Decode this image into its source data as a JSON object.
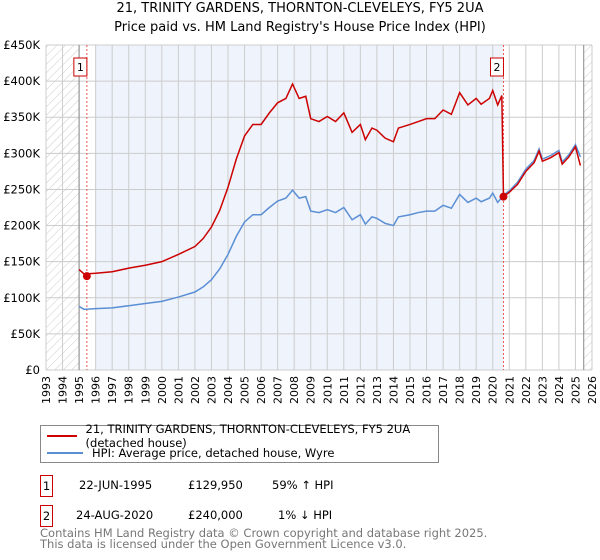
{
  "title": "21, TRINITY GARDENS, THORNTON-CLEVELEYS, FY5 2UA",
  "subtitle": "Price paid vs. HM Land Registry's House Price Index (HPI)",
  "chart_data": {
    "type": "line",
    "title": "21, TRINITY GARDENS, THORNTON-CLEVELEYS, FY5 2UA",
    "subtitle": "Price paid vs. HM Land Registry's House Price Index (HPI)",
    "xlim": [
      1993,
      2026
    ],
    "ylim": [
      0,
      450000
    ],
    "x_ticks": [
      "1993",
      "1994",
      "1995",
      "1996",
      "1997",
      "1998",
      "1999",
      "2000",
      "2001",
      "2002",
      "2003",
      "2004",
      "2005",
      "2006",
      "2007",
      "2008",
      "2009",
      "2010",
      "2011",
      "2012",
      "2013",
      "2014",
      "2015",
      "2016",
      "2017",
      "2018",
      "2019",
      "2020",
      "2021",
      "2022",
      "2023",
      "2024",
      "2025",
      "2026"
    ],
    "y_ticks": [
      {
        "v": 0,
        "label": "£0"
      },
      {
        "v": 50000,
        "label": "£50K"
      },
      {
        "v": 100000,
        "label": "£100K"
      },
      {
        "v": 150000,
        "label": "£150K"
      },
      {
        "v": 200000,
        "label": "£200K"
      },
      {
        "v": 250000,
        "label": "£250K"
      },
      {
        "v": 300000,
        "label": "£300K"
      },
      {
        "v": 350000,
        "label": "£350K"
      },
      {
        "v": 400000,
        "label": "£400K"
      },
      {
        "v": 450000,
        "label": "£450K"
      }
    ],
    "grid": true,
    "colors": {
      "property": "#cc0000",
      "hpi": "#5b8fd4",
      "band": "#eef3fc"
    },
    "series": [
      {
        "name": "21, TRINITY GARDENS, THORNTON-CLEVELEYS, FY5 2UA (detached house)",
        "x": [
          1995,
          1995.3,
          1996,
          1997,
          1998,
          1999,
          2000,
          2001,
          2002,
          2002.5,
          2003,
          2003.5,
          2004,
          2004.5,
          2005,
          2005.5,
          2006,
          2006.5,
          2007,
          2007.5,
          2007.9,
          2008.3,
          2008.7,
          2009,
          2009.5,
          2010,
          2010.5,
          2011,
          2011.5,
          2012,
          2012.3,
          2012.7,
          2013,
          2013.5,
          2014,
          2014.3,
          2015,
          2015.5,
          2016,
          2016.5,
          2017,
          2017.5,
          2018,
          2018.5,
          2019,
          2019.3,
          2019.8,
          2020,
          2020.3,
          2020.55,
          2020.65,
          2021,
          2021.5,
          2022,
          2022.5,
          2022.8,
          2023,
          2023.5,
          2024,
          2024.2,
          2024.6,
          2025,
          2025.3
        ],
        "y": [
          139000,
          133000,
          134000,
          136000,
          141000,
          145000,
          150000,
          160000,
          171000,
          182000,
          198000,
          221000,
          253000,
          292000,
          324000,
          340000,
          340000,
          356000,
          370000,
          376000,
          396000,
          376000,
          379000,
          348000,
          344000,
          351000,
          344000,
          356000,
          329000,
          340000,
          319000,
          335000,
          332000,
          321000,
          316000,
          335000,
          340000,
          344000,
          348000,
          348000,
          360000,
          354000,
          384000,
          367000,
          376000,
          368000,
          376000,
          387000,
          367000,
          380000,
          240000,
          246000,
          257000,
          275000,
          287000,
          303000,
          289000,
          294000,
          301000,
          285000,
          295000,
          309000,
          283000
        ]
      },
      {
        "name": "HPI: Average price, detached house, Wyre",
        "x": [
          1995,
          1995.3,
          1996,
          1997,
          1998,
          1999,
          2000,
          2001,
          2002,
          2002.5,
          2003,
          2003.5,
          2004,
          2004.5,
          2005,
          2005.5,
          2006,
          2006.5,
          2007,
          2007.5,
          2007.9,
          2008.3,
          2008.7,
          2009,
          2009.5,
          2010,
          2010.5,
          2011,
          2011.5,
          2012,
          2012.3,
          2012.7,
          2013,
          2013.5,
          2014,
          2014.3,
          2015,
          2015.5,
          2016,
          2016.5,
          2017,
          2017.5,
          2018,
          2018.5,
          2019,
          2019.3,
          2019.8,
          2020,
          2020.3,
          2020.65,
          2021,
          2021.5,
          2022,
          2022.5,
          2022.8,
          2023,
          2023.5,
          2024,
          2024.2,
          2024.6,
          2025,
          2025.3
        ],
        "y": [
          88000,
          84000,
          85000,
          86000,
          89000,
          92000,
          95000,
          101000,
          108000,
          115000,
          125000,
          140000,
          160000,
          185000,
          205000,
          215000,
          215000,
          225000,
          234000,
          238000,
          249000,
          238000,
          240000,
          220000,
          218000,
          222000,
          218000,
          225000,
          208000,
          215000,
          202000,
          212000,
          210000,
          203000,
          200000,
          212000,
          215000,
          218000,
          220000,
          220000,
          228000,
          224000,
          243000,
          232000,
          238000,
          233000,
          238000,
          245000,
          232000,
          242000,
          248000,
          260000,
          278000,
          290000,
          306000,
          292000,
          297000,
          304000,
          288000,
          298000,
          312000,
          295000
        ]
      }
    ],
    "annotations": [
      {
        "label": "1",
        "x": 1995.47,
        "y": 129950
      },
      {
        "label": "2",
        "x": 2020.65,
        "y": 240000
      }
    ]
  },
  "legend": {
    "items": [
      {
        "label": "21, TRINITY GARDENS, THORNTON-CLEVELEYS, FY5 2UA (detached house)"
      },
      {
        "label": "HPI: Average price, detached house, Wyre"
      }
    ]
  },
  "transactions": [
    {
      "num": "1",
      "date": "22-JUN-1995",
      "price": "£129,950",
      "hpi": "59% ↑ HPI"
    },
    {
      "num": "2",
      "date": "24-AUG-2020",
      "price": "£240,000",
      "hpi": "1% ↓ HPI"
    }
  ],
  "footer": {
    "line1": "Contains HM Land Registry data © Crown copyright and database right 2025.",
    "line2": "This data is licensed under the Open Government Licence v3.0."
  }
}
